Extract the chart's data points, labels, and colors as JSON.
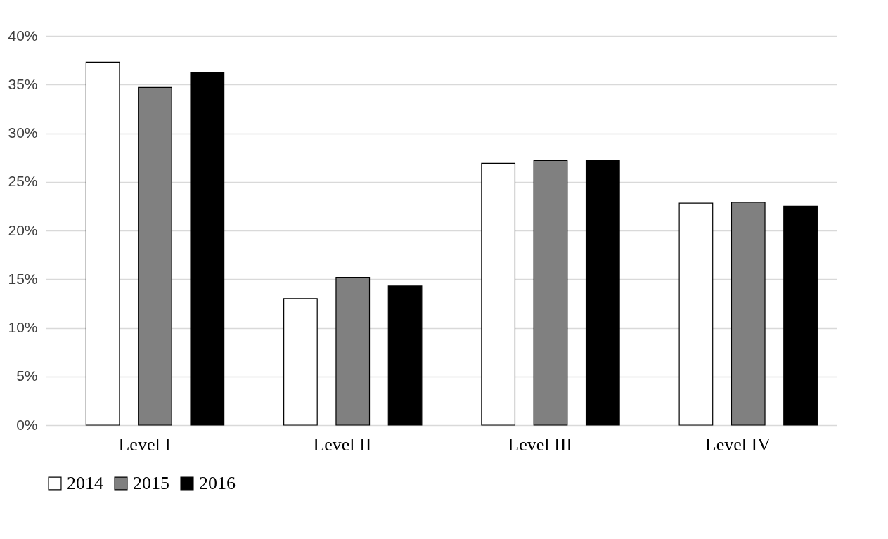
{
  "chart_data": {
    "type": "bar",
    "categories": [
      "Level I",
      "Level II",
      "Level III",
      "Level IV"
    ],
    "series": [
      {
        "name": "2014",
        "color": "#ffffff",
        "values": [
          37.3,
          13.0,
          26.9,
          22.8
        ]
      },
      {
        "name": "2015",
        "color": "#808080",
        "values": [
          34.7,
          15.2,
          27.2,
          22.9
        ]
      },
      {
        "name": "2016",
        "color": "#000000",
        "values": [
          36.2,
          14.3,
          27.2,
          22.5
        ]
      }
    ],
    "ylim": [
      0,
      40
    ],
    "yticks": [
      {
        "value": 0,
        "label": "0%"
      },
      {
        "value": 5,
        "label": "5%"
      },
      {
        "value": 10,
        "label": "10%"
      },
      {
        "value": 15,
        "label": "15%"
      },
      {
        "value": 20,
        "label": "20%"
      },
      {
        "value": 25,
        "label": "25%"
      },
      {
        "value": 30,
        "label": "30%"
      },
      {
        "value": 35,
        "label": "35%"
      },
      {
        "value": 40,
        "label": "40%"
      }
    ],
    "grid": "y",
    "legend": "bottom"
  }
}
